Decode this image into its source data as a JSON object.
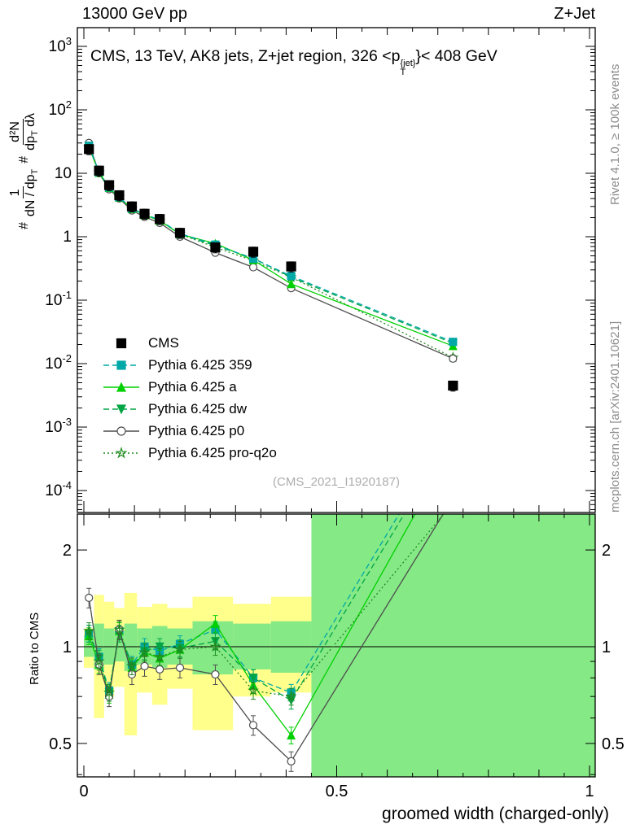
{
  "header": {
    "left_title": "13000 GeV pp",
    "right_title": "Z+Jet"
  },
  "side_labels": {
    "rivet": "Rivet 4.1.0, ≥ 100k events",
    "mcplots": "mcplots.cern.ch [arXiv:2401.10621]"
  },
  "watermark": "(CMS_2021_I1920187)",
  "main_title_parts": {
    "pre": "CMS, 13 TeV, AK8 jets, Z+jet region, 326 <p",
    "sup": "{jet}",
    "sub": "T",
    "post": "}< 408 GeV"
  },
  "ylabel_parts": {
    "hash1": "#",
    "num1": "1",
    "den1": "dN / dp",
    "den1_sub": "T",
    "hash2": "#",
    "num2": "d²N",
    "den2": "dp",
    "den2_sub": "T",
    "den2_tail": " dλ"
  },
  "ratio_ylabel": "Ratio to CMS",
  "xaxis": {
    "title": "groomed width (charged-only)",
    "tick_values": [
      0,
      0.5,
      1
    ],
    "tick_labels": [
      "0",
      "0.5",
      "1"
    ]
  },
  "chart_data": [
    {
      "type": "line",
      "panel": "main",
      "title": "CMS, 13 TeV, AK8 jets, Z+jet region, 326 <p_T^{jet}}< 408 GeV",
      "xlabel": "groomed width (charged-only)",
      "ylabel": "# 1/(dN/dp_T)  # d²N/(dp_T dλ)",
      "yscale": "log",
      "ylim": [
        4e-05,
        2000
      ],
      "xlim": [
        -0.013,
        1.011
      ],
      "grid": false,
      "legend_position": "left-middle",
      "y_tick_exponents": [
        3,
        2,
        1,
        0,
        -1,
        -2,
        -3,
        -4
      ],
      "x": [
        0.01,
        0.03,
        0.05,
        0.07,
        0.095,
        0.12,
        0.15,
        0.19,
        0.26,
        0.335,
        0.41,
        0.73
      ],
      "series": [
        {
          "name": "CMS",
          "color": "#000000",
          "marker": "square",
          "fill": true,
          "line": "none",
          "rel_err": 0.18,
          "values": [
            24,
            11,
            6.5,
            4.5,
            3.0,
            2.3,
            1.9,
            1.15,
            0.68,
            0.58,
            0.34,
            0.0045
          ]
        },
        {
          "name": "Pythia 6.425 359",
          "color": "#00a8a8",
          "marker": "square",
          "fill": true,
          "line": "dashed",
          "rel_err": 0.1,
          "values": [
            27,
            10.4,
            6.0,
            4.2,
            2.8,
            2.25,
            1.85,
            1.12,
            0.75,
            0.45,
            0.24,
            0.022
          ]
        },
        {
          "name": "Pythia 6.425 a",
          "color": "#00d000",
          "marker": "triangle-up",
          "fill": true,
          "line": "solid",
          "rel_err": 0.1,
          "values": [
            26,
            10.2,
            5.9,
            4.15,
            2.75,
            2.2,
            1.8,
            1.1,
            0.78,
            0.43,
            0.18,
            0.019
          ]
        },
        {
          "name": "Pythia 6.425 dw",
          "color": "#00a545",
          "marker": "triangle-down",
          "fill": true,
          "line": "dashed",
          "rel_err": 0.1,
          "values": [
            27,
            10.4,
            6.0,
            4.1,
            2.8,
            2.2,
            1.85,
            1.1,
            0.72,
            0.46,
            0.23,
            0.021
          ]
        },
        {
          "name": "Pythia 6.425 p0",
          "color": "#4d4d4d",
          "marker": "circle",
          "fill": false,
          "line": "solid",
          "rel_err": 0.1,
          "values": [
            30,
            10.0,
            5.6,
            4.0,
            2.6,
            2.05,
            1.65,
            1.0,
            0.56,
            0.33,
            0.155,
            0.012
          ]
        },
        {
          "name": "Pythia 6.425 pro-q2o",
          "color": "#1f8a1f",
          "marker": "star",
          "fill": false,
          "line": "dotted",
          "rel_err": 0.1,
          "values": [
            26,
            10.3,
            5.9,
            4.2,
            2.75,
            2.2,
            1.8,
            1.1,
            0.68,
            0.42,
            0.23,
            0.0125
          ]
        }
      ],
      "watermark": "(CMS_2021_I1920187)"
    },
    {
      "type": "ratio",
      "panel": "ratio",
      "ylabel": "Ratio to CMS",
      "yscale": "log",
      "ylim": [
        0.393,
        2.59
      ],
      "y_ticks": [
        0.5,
        1,
        2
      ],
      "x": [
        0.01,
        0.03,
        0.05,
        0.07,
        0.095,
        0.12,
        0.15,
        0.19,
        0.26,
        0.335,
        0.41,
        0.73
      ],
      "series": [
        {
          "name": "Pythia 6.425 359",
          "color": "#00a8a8",
          "marker": "square",
          "fill": true,
          "line": "dashed",
          "rel_err": 0.06,
          "values": [
            1.1,
            0.93,
            0.73,
            1.12,
            0.88,
            1.0,
            0.97,
            1.02,
            1.13,
            0.8,
            0.72,
            4.9
          ]
        },
        {
          "name": "Pythia 6.425 a",
          "color": "#00d000",
          "marker": "triangle-up",
          "fill": true,
          "line": "solid",
          "rel_err": 0.06,
          "values": [
            1.08,
            0.88,
            0.71,
            1.12,
            0.86,
            0.96,
            0.92,
            0.98,
            1.18,
            0.76,
            0.53,
            4.2
          ]
        },
        {
          "name": "Pythia 6.425 dw",
          "color": "#00a545",
          "marker": "triangle-down",
          "fill": true,
          "line": "dashed",
          "rel_err": 0.06,
          "values": [
            1.1,
            0.92,
            0.72,
            1.1,
            0.87,
            0.97,
            1.0,
            0.99,
            1.04,
            0.8,
            0.68,
            4.6
          ]
        },
        {
          "name": "Pythia 6.425 p0",
          "color": "#4d4d4d",
          "marker": "circle",
          "fill": false,
          "line": "solid",
          "rel_err": 0.07,
          "values": [
            1.42,
            0.88,
            0.7,
            1.13,
            0.82,
            0.87,
            0.85,
            0.86,
            0.82,
            0.57,
            0.44,
            2.9
          ]
        },
        {
          "name": "Pythia 6.425 pro-q2o",
          "color": "#1f8a1f",
          "marker": "star",
          "fill": false,
          "line": "dotted",
          "rel_err": 0.06,
          "values": [
            1.12,
            0.9,
            0.72,
            1.13,
            0.87,
            0.96,
            0.93,
            0.98,
            1.0,
            0.73,
            0.7,
            2.8
          ]
        }
      ],
      "bands": {
        "yellow_color": "#ffff8c",
        "green_color": "#85e985",
        "ref_line": 1,
        "yellow": [
          [
            0,
            0.02,
            0.86,
            1.14
          ],
          [
            0.02,
            0.04,
            0.6,
            1.45
          ],
          [
            0.04,
            0.06,
            0.7,
            1.38
          ],
          [
            0.06,
            0.08,
            0.75,
            1.32
          ],
          [
            0.08,
            0.105,
            0.53,
            1.47
          ],
          [
            0.105,
            0.135,
            0.72,
            1.33
          ],
          [
            0.135,
            0.165,
            0.66,
            1.36
          ],
          [
            0.165,
            0.215,
            0.74,
            1.32
          ],
          [
            0.215,
            0.295,
            0.55,
            1.43
          ],
          [
            0.295,
            0.37,
            0.7,
            1.36
          ],
          [
            0.37,
            0.45,
            0.72,
            1.43
          ]
        ],
        "green": [
          [
            0,
            0.02,
            0.93,
            1.08
          ],
          [
            0.02,
            0.04,
            0.85,
            1.18
          ],
          [
            0.04,
            0.06,
            0.88,
            1.14
          ],
          [
            0.06,
            0.08,
            0.9,
            1.12
          ],
          [
            0.08,
            0.105,
            0.84,
            1.18
          ],
          [
            0.105,
            0.135,
            0.88,
            1.14
          ],
          [
            0.135,
            0.165,
            0.86,
            1.16
          ],
          [
            0.165,
            0.215,
            0.88,
            1.14
          ],
          [
            0.215,
            0.295,
            0.82,
            1.2
          ],
          [
            0.295,
            0.37,
            0.85,
            1.18
          ],
          [
            0.37,
            0.45,
            0.83,
            1.2
          ],
          [
            0.45,
            1.012,
            0.393,
            2.59
          ]
        ]
      }
    }
  ]
}
